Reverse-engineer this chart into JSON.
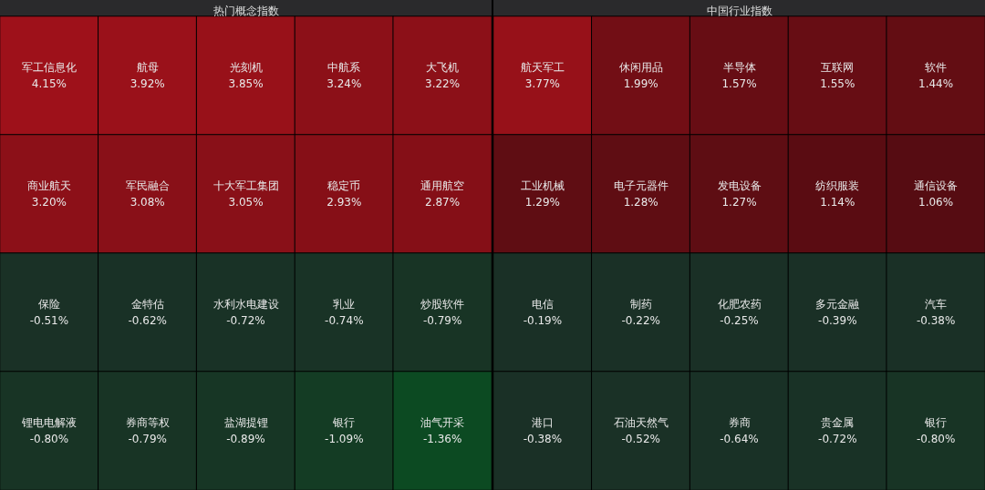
{
  "chart_data": [
    {
      "type": "other",
      "title": "热门概念指数",
      "categories": [
        "军工信息化",
        "航母",
        "光刻机",
        "中航系",
        "大飞机",
        "商业航天",
        "军民融合",
        "十大军工集团",
        "稳定币",
        "通用航空",
        "保险",
        "金特估",
        "水利水电建设",
        "乳业",
        "炒股软件",
        "锂电电解液",
        "券商等权",
        "盐湖提锂",
        "银行",
        "油气开采"
      ],
      "values": [
        4.15,
        3.92,
        3.85,
        3.24,
        3.22,
        3.2,
        3.08,
        3.05,
        2.93,
        2.87,
        -0.51,
        -0.62,
        -0.72,
        -0.74,
        -0.79,
        -0.8,
        -0.79,
        -0.89,
        -1.09,
        -1.36
      ],
      "value_labels": [
        "4.15%",
        "3.92%",
        "3.85%",
        "3.24%",
        "3.22%",
        "3.20%",
        "3.08%",
        "3.05%",
        "2.93%",
        "2.87%",
        "-0.51%",
        "-0.62%",
        "-0.72%",
        "-0.74%",
        "-0.79%",
        "-0.80%",
        "-0.79%",
        "-0.89%",
        "-1.09%",
        "-1.36%"
      ]
    },
    {
      "type": "other",
      "title": "中国行业指数",
      "categories": [
        "航天军工",
        "休闲用品",
        "半导体",
        "互联网",
        "软件",
        "工业机械",
        "电子元器件",
        "发电设备",
        "纺织服装",
        "通信设备",
        "电信",
        "制药",
        "化肥农药",
        "多元金融",
        "汽车",
        "港口",
        "石油天然气",
        "券商",
        "贵金属",
        "银行"
      ],
      "values": [
        3.77,
        1.99,
        1.57,
        1.55,
        1.44,
        1.29,
        1.28,
        1.27,
        1.14,
        1.06,
        -0.19,
        -0.22,
        -0.25,
        -0.39,
        -0.38,
        -0.38,
        -0.52,
        -0.64,
        -0.72,
        -0.8
      ],
      "value_labels": [
        "3.77%",
        "1.99%",
        "1.57%",
        "1.55%",
        "1.44%",
        "1.29%",
        "1.28%",
        "1.27%",
        "1.14%",
        "1.06%",
        "-0.19%",
        "-0.22%",
        "-0.25%",
        "-0.39%",
        "-0.38%",
        "-0.38%",
        "-0.52%",
        "-0.64%",
        "-0.72%",
        "-0.80%"
      ]
    }
  ]
}
